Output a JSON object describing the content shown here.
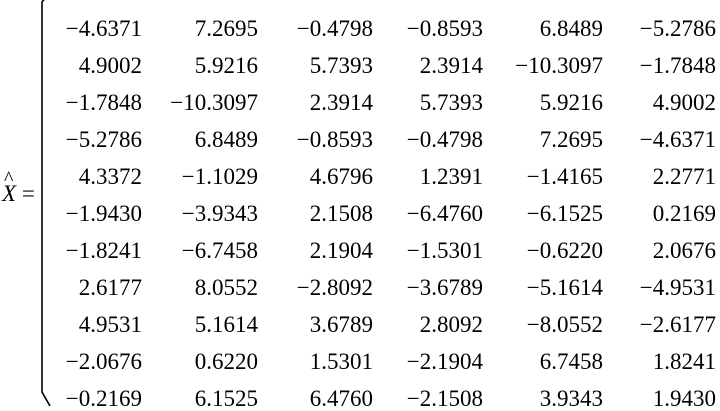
{
  "equation": {
    "lhs_symbol": "X",
    "hat_mark": "^",
    "equals": "="
  },
  "matrix": {
    "rows": [
      [
        "−4.6371",
        "7.2695",
        "−0.4798",
        "−0.8593",
        "6.8489",
        "−5.2786"
      ],
      [
        "4.9002",
        "5.9216",
        "5.7393",
        "2.3914",
        "−10.3097",
        "−1.7848"
      ],
      [
        "−1.7848",
        "−10.3097",
        "2.3914",
        "5.7393",
        "5.9216",
        "4.9002"
      ],
      [
        "−5.2786",
        "6.8489",
        "−0.8593",
        "−0.4798",
        "7.2695",
        "−4.6371"
      ],
      [
        "4.3372",
        "−1.1029",
        "4.6796",
        "1.2391",
        "−1.4165",
        "2.2771"
      ],
      [
        "−1.9430",
        "−3.9343",
        "2.1508",
        "−6.4760",
        "−6.1525",
        "0.2169"
      ],
      [
        "−1.8241",
        "−6.7458",
        "2.1904",
        "−1.5301",
        "−0.6220",
        "2.0676"
      ],
      [
        "2.6177",
        "8.0552",
        "−2.8092",
        "−3.6789",
        "−5.1614",
        "−4.9531"
      ],
      [
        "4.9531",
        "5.1614",
        "3.6789",
        "2.8092",
        "−8.0552",
        "−2.6177"
      ],
      [
        "−2.0676",
        "0.6220",
        "1.5301",
        "−2.1904",
        "6.7458",
        "1.8241"
      ],
      [
        "−0.2169",
        "6.1525",
        "6.4760",
        "−2.1508",
        "3.9343",
        "1.9430"
      ]
    ]
  }
}
